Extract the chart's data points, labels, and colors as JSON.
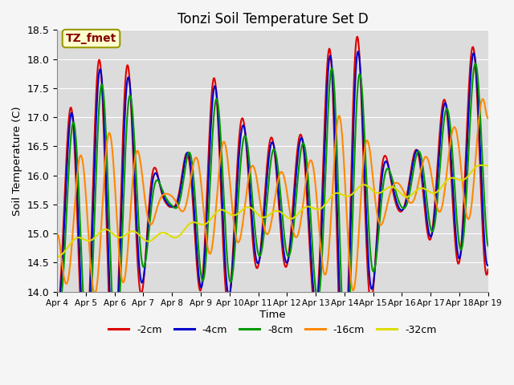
{
  "title": "Tonzi Soil Temperature Set D",
  "xlabel": "Time",
  "ylabel": "Soil Temperature (C)",
  "ylim": [
    14.0,
    18.5
  ],
  "annotation": "TZ_fmet",
  "legend_labels": [
    "-2cm",
    "-4cm",
    "-8cm",
    "-16cm",
    "-32cm"
  ],
  "legend_colors": [
    "#dd0000",
    "#0000cc",
    "#009900",
    "#ff8800",
    "#dddd00"
  ],
  "line_widths": [
    1.5,
    1.5,
    1.5,
    1.5,
    1.5
  ],
  "bg_color": "#dcdcdc",
  "grid_color": "#ffffff",
  "xtick_labels": [
    "Apr 4",
    "Apr 5",
    "Apr 6",
    "Apr 7",
    "Apr 8",
    "Apr 9",
    "Apr 10",
    "Apr 11",
    "Apr 12",
    "Apr 13",
    "Apr 14",
    "Apr 15",
    "Apr 16",
    "Apr 17",
    "Apr 18",
    "Apr 19"
  ],
  "title_fontsize": 12,
  "fig_width": 6.4,
  "fig_height": 4.8,
  "dpi": 100
}
